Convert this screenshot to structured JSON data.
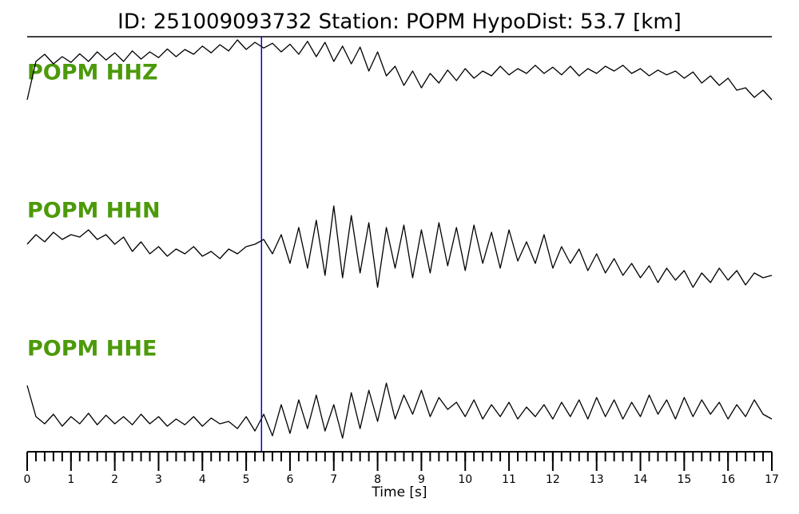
{
  "chart_data": {
    "type": "line",
    "title": "ID: 251009093732   Station: POPM   HypoDist:    53.7 [km]",
    "xlabel": "Time [s]",
    "xlim": [
      0,
      17
    ],
    "xticks": [
      0,
      1,
      2,
      3,
      4,
      5,
      6,
      7,
      8,
      9,
      10,
      11,
      12,
      13,
      14,
      15,
      16,
      17
    ],
    "ylim": [
      -1,
      1
    ],
    "pick_time": 5.35,
    "pick_color": "#0000cc",
    "label_color": "#4c9a0a",
    "x": [
      0,
      0.2,
      0.4,
      0.6,
      0.8,
      1,
      1.2,
      1.4,
      1.6,
      1.8,
      2,
      2.2,
      2.4,
      2.6,
      2.8,
      3,
      3.2,
      3.4,
      3.6,
      3.8,
      4,
      4.2,
      4.4,
      4.6,
      4.8,
      5,
      5.2,
      5.4,
      5.6,
      5.8,
      6,
      6.2,
      6.4,
      6.6,
      6.8,
      7,
      7.2,
      7.4,
      7.6,
      7.8,
      8,
      8.2,
      8.4,
      8.6,
      8.8,
      9,
      9.2,
      9.4,
      9.6,
      9.8,
      10,
      10.2,
      10.4,
      10.6,
      10.8,
      11,
      11.2,
      11.4,
      11.6,
      11.8,
      12,
      12.2,
      12.4,
      12.6,
      12.8,
      13,
      13.2,
      13.4,
      13.6,
      13.8,
      14,
      14.2,
      14.4,
      14.6,
      14.8,
      15,
      15.2,
      15.4,
      15.6,
      15.8,
      16,
      16.2,
      16.4,
      16.6,
      16.8,
      17
    ],
    "series": [
      {
        "name": "POPM HHZ",
        "color": "#000000",
        "values": [
          -0.5,
          0.3,
          0.45,
          0.25,
          0.4,
          0.28,
          0.46,
          0.3,
          0.5,
          0.33,
          0.48,
          0.3,
          0.52,
          0.35,
          0.5,
          0.38,
          0.56,
          0.4,
          0.55,
          0.45,
          0.62,
          0.48,
          0.65,
          0.52,
          0.75,
          0.55,
          0.7,
          0.58,
          0.68,
          0.5,
          0.66,
          0.45,
          0.72,
          0.4,
          0.7,
          0.3,
          0.62,
          0.25,
          0.6,
          0.1,
          0.5,
          0.0,
          0.2,
          -0.2,
          0.1,
          -0.25,
          0.05,
          -0.15,
          0.12,
          -0.1,
          0.15,
          -0.05,
          0.1,
          0.0,
          0.2,
          0.02,
          0.15,
          0.05,
          0.22,
          0.05,
          0.18,
          0.02,
          0.2,
          0.0,
          0.15,
          0.05,
          0.2,
          0.1,
          0.22,
          0.05,
          0.15,
          0.0,
          0.12,
          0.02,
          0.1,
          -0.05,
          0.08,
          -0.15,
          0.0,
          -0.2,
          -0.05,
          -0.3,
          -0.25,
          -0.45,
          -0.3,
          -0.5
        ]
      },
      {
        "name": "POPM HHN",
        "color": "#000000",
        "values": [
          0.1,
          0.3,
          0.15,
          0.35,
          0.2,
          0.3,
          0.25,
          0.4,
          0.2,
          0.3,
          0.1,
          0.25,
          -0.05,
          0.15,
          -0.1,
          0.05,
          -0.15,
          0.0,
          -0.1,
          0.05,
          -0.15,
          -0.05,
          -0.2,
          0.0,
          -0.1,
          0.05,
          0.1,
          0.2,
          -0.1,
          0.3,
          -0.3,
          0.45,
          -0.4,
          0.6,
          -0.55,
          0.9,
          -0.6,
          0.7,
          -0.5,
          0.55,
          -0.8,
          0.45,
          -0.4,
          0.5,
          -0.6,
          0.4,
          -0.5,
          0.55,
          -0.35,
          0.45,
          -0.45,
          0.5,
          -0.3,
          0.35,
          -0.4,
          0.4,
          -0.25,
          0.15,
          -0.3,
          0.3,
          -0.4,
          0.05,
          -0.3,
          0.0,
          -0.45,
          -0.1,
          -0.5,
          -0.2,
          -0.55,
          -0.3,
          -0.6,
          -0.35,
          -0.7,
          -0.4,
          -0.65,
          -0.45,
          -0.8,
          -0.5,
          -0.7,
          -0.4,
          -0.65,
          -0.45,
          -0.75,
          -0.5,
          -0.6,
          -0.55
        ]
      },
      {
        "name": "POPM HHE",
        "color": "#000000",
        "values": [
          0.7,
          0.05,
          -0.1,
          0.1,
          -0.15,
          0.05,
          -0.1,
          0.12,
          -0.12,
          0.08,
          -0.1,
          0.05,
          -0.12,
          0.1,
          -0.1,
          0.05,
          -0.15,
          0.0,
          -0.12,
          0.05,
          -0.15,
          0.02,
          -0.1,
          -0.05,
          -0.2,
          0.05,
          -0.25,
          0.1,
          -0.35,
          0.3,
          -0.3,
          0.4,
          -0.2,
          0.5,
          -0.25,
          0.3,
          -0.4,
          0.55,
          -0.2,
          0.6,
          -0.05,
          0.75,
          0.0,
          0.5,
          0.1,
          0.6,
          0.05,
          0.45,
          0.2,
          0.35,
          0.05,
          0.4,
          0.0,
          0.3,
          0.05,
          0.35,
          0.0,
          0.25,
          0.05,
          0.3,
          0.0,
          0.35,
          0.05,
          0.4,
          0.0,
          0.45,
          0.05,
          0.4,
          0.0,
          0.35,
          0.05,
          0.5,
          0.1,
          0.4,
          0.0,
          0.45,
          0.05,
          0.4,
          0.1,
          0.35,
          0.0,
          0.3,
          0.05,
          0.4,
          0.1,
          0.0
        ]
      }
    ]
  }
}
